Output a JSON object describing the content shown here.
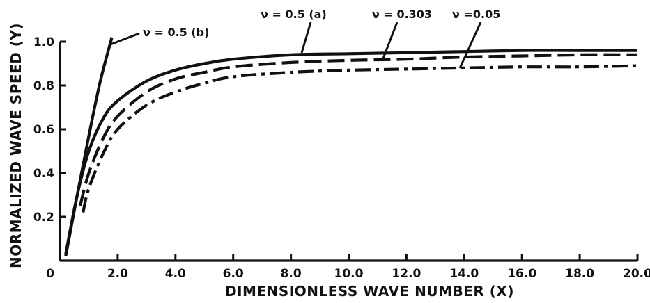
{
  "chart_data": {
    "type": "line",
    "xlabel": "DIMENSIONLESS WAVE NUMBER (X)",
    "ylabel": "NORMALIZED WAVE SPEED (Y)",
    "xlim": [
      0,
      20
    ],
    "ylim": [
      0,
      1.0
    ],
    "x_ticks": [
      {
        "value": 0,
        "label": "0"
      },
      {
        "value": 2,
        "label": "2.0"
      },
      {
        "value": 4,
        "label": "4.0"
      },
      {
        "value": 6,
        "label": "6.0"
      },
      {
        "value": 8,
        "label": "8.0"
      },
      {
        "value": 10,
        "label": "10.0"
      },
      {
        "value": 12,
        "label": "12.0"
      },
      {
        "value": 14,
        "label": "14.0"
      },
      {
        "value": 16,
        "label": "16.0"
      },
      {
        "value": 18,
        "label": "18.0"
      },
      {
        "value": 20,
        "label": "20.0"
      }
    ],
    "y_ticks": [
      {
        "value": 0.2,
        "label": "0.2"
      },
      {
        "value": 0.4,
        "label": "0.4"
      },
      {
        "value": 0.6,
        "label": "0.6"
      },
      {
        "value": 0.8,
        "label": "0.8"
      },
      {
        "value": 1.0,
        "label": "1.0"
      }
    ],
    "grid": false,
    "series": [
      {
        "name": "ν = 0.5 (b)",
        "style": "solid",
        "x": [
          0.2,
          0.6,
          1.0,
          1.4,
          1.8
        ],
        "y": [
          0.02,
          0.3,
          0.57,
          0.82,
          1.02
        ]
      },
      {
        "name": "ν = 0.5 (a)",
        "style": "solid",
        "x": [
          0.2,
          0.6,
          1.0,
          1.5,
          2.0,
          3.0,
          4.0,
          5.0,
          6.0,
          8.0,
          10.0,
          12.0,
          14.0,
          16.0,
          18.0,
          20.0
        ],
        "y": [
          0.03,
          0.3,
          0.5,
          0.65,
          0.73,
          0.82,
          0.87,
          0.9,
          0.92,
          0.94,
          0.945,
          0.95,
          0.955,
          0.96,
          0.96,
          0.96
        ],
        "label_at": {
          "x": 8.5,
          "y": 0.94
        }
      },
      {
        "name": "ν = 0.303",
        "style": "dashed",
        "x": [
          0.7,
          1.0,
          1.5,
          2.0,
          3.0,
          4.0,
          5.0,
          6.0,
          8.0,
          10.0,
          12.0,
          14.0,
          16.0,
          18.0,
          20.0
        ],
        "y": [
          0.25,
          0.4,
          0.56,
          0.66,
          0.77,
          0.83,
          0.86,
          0.885,
          0.905,
          0.915,
          0.92,
          0.93,
          0.935,
          0.94,
          0.94
        ],
        "label_at": {
          "x": 11.5,
          "y": 0.915
        }
      },
      {
        "name": "ν =0.05",
        "style": "dashdot",
        "x": [
          0.8,
          1.0,
          1.5,
          2.0,
          3.0,
          4.0,
          5.0,
          6.0,
          8.0,
          10.0,
          12.0,
          14.0,
          16.0,
          18.0,
          20.0
        ],
        "y": [
          0.22,
          0.33,
          0.49,
          0.6,
          0.71,
          0.77,
          0.81,
          0.84,
          0.86,
          0.87,
          0.875,
          0.88,
          0.885,
          0.885,
          0.89
        ],
        "label_at": {
          "x": 14.0,
          "y": 0.875
        }
      }
    ],
    "annotations": [
      {
        "text": "ν = 0.5 (b)",
        "series": "ν = 0.5 (b)"
      },
      {
        "text": "ν = 0.5 (a)",
        "series": "ν = 0.5 (a)"
      },
      {
        "text": "ν = 0.303",
        "series": "ν = 0.303"
      },
      {
        "text": "ν =0.05",
        "series": "ν =0.05"
      }
    ]
  }
}
